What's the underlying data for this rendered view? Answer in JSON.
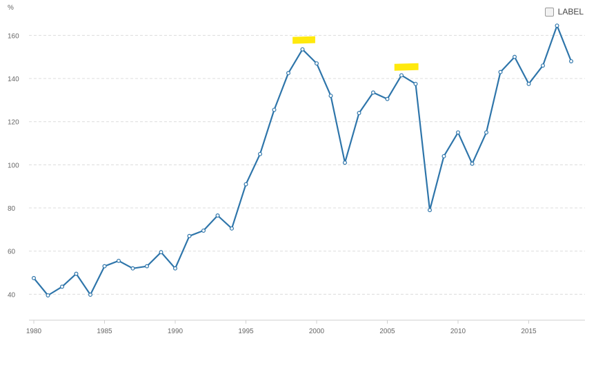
{
  "chart_data": {
    "type": "line",
    "ylabel": "%",
    "xlabel": "",
    "title": "",
    "x": [
      1980,
      1981,
      1982,
      1983,
      1984,
      1985,
      1986,
      1987,
      1988,
      1989,
      1990,
      1991,
      1992,
      1993,
      1994,
      1995,
      1996,
      1997,
      1998,
      1999,
      2000,
      2001,
      2002,
      2003,
      2004,
      2005,
      2006,
      2007,
      2008,
      2009,
      2010,
      2011,
      2012,
      2013,
      2014,
      2015,
      2016,
      2017,
      2018
    ],
    "series": [
      {
        "name": "LABEL",
        "color": "#2e75aa",
        "values": [
          47.5,
          39.5,
          43.5,
          49.5,
          39.8,
          53,
          55.5,
          52,
          53,
          59.5,
          52,
          67,
          69.5,
          76.5,
          70.5,
          91,
          105,
          125.5,
          142.5,
          153.5,
          147,
          132,
          101,
          124,
          133.5,
          130.5,
          141.5,
          137.5,
          79,
          104,
          115,
          100.5,
          115,
          143,
          150,
          137.5,
          146,
          164.5,
          148
        ]
      }
    ],
    "ylim": [
      28,
      170
    ],
    "y_ticks": [
      40,
      60,
      80,
      100,
      120,
      140,
      160
    ],
    "x_ticks": [
      1980,
      1985,
      1990,
      1995,
      2000,
      2005,
      2010,
      2015
    ],
    "xlim": [
      1980,
      2018
    ],
    "grid": "horizontal-dashed",
    "legend": {
      "label": "LABEL",
      "checked": false,
      "position": "top-right"
    },
    "highlights": [
      {
        "color": "#ffe800",
        "x_from": 1998.3,
        "x_to": 1999.9,
        "y": 158
      },
      {
        "color": "#ffe800",
        "x_from": 2005.5,
        "x_to": 2007.2,
        "y": 145.5
      }
    ]
  }
}
